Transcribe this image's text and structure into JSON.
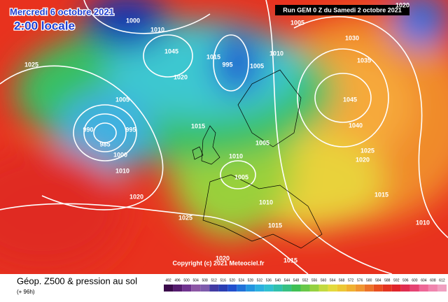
{
  "header": {
    "date": "Mercredi 6 octobre 2021",
    "time": "2:00 locale",
    "run": "Run GEM 0 Z du Samedi 2 octobre 2021"
  },
  "copyright": "Copyright (c) 2021 Meteociel.fr",
  "footer": {
    "title": "Géop. Z500 & pression au sol",
    "lead": "(+ 96h)"
  },
  "isobar_labels": [
    "1025",
    "1000",
    "1010",
    "1045",
    "1020",
    "1015",
    "995",
    "1005",
    "1010",
    "1005",
    "1030",
    "1035",
    "1045",
    "1040",
    "1025",
    "1020",
    "1015",
    "1010",
    "1020",
    "1015",
    "1005",
    "995",
    "985",
    "990",
    "1000",
    "1010",
    "1020",
    "1025",
    "1010",
    "1005",
    "1005",
    "1010",
    "1015",
    "1020",
    "1015"
  ],
  "colorbar": {
    "labels": [
      492,
      496,
      500,
      504,
      508,
      512,
      516,
      520,
      524,
      528,
      532,
      536,
      540,
      544,
      548,
      552,
      556,
      560,
      564,
      568,
      572,
      576,
      580,
      584,
      588,
      592,
      596,
      600,
      604,
      608,
      612
    ]
  }
}
